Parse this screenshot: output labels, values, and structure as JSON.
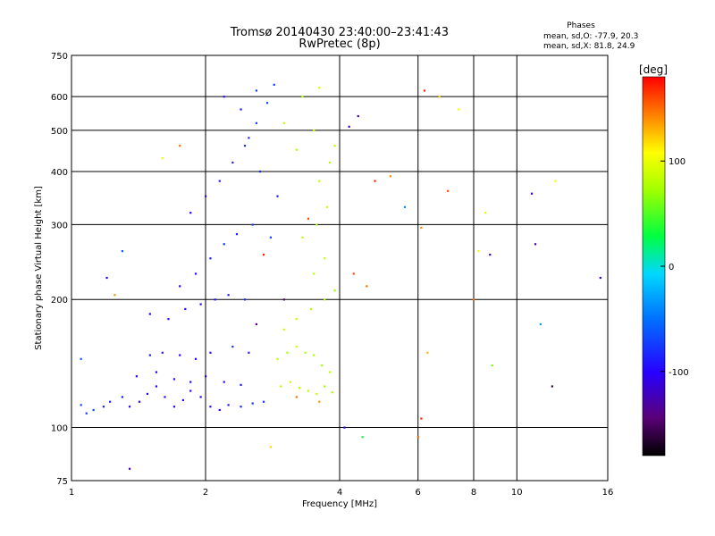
{
  "chart_data": {
    "type": "scatter",
    "title": "Tromsø 20140430 23:40:00–23:41:43",
    "subtitle": "RwPretec (8p)",
    "stats": {
      "heading": "Phases",
      "line1": "mean, sd,O: -77.9, 20.3",
      "line2": "mean, sd,X:  81.8, 24.9"
    },
    "xlabel": "Frequency [MHz]",
    "ylabel": "Stationary phase Virtual Height [km]",
    "x_scale": "log",
    "y_scale": "log",
    "xlim": [
      1,
      16
    ],
    "ylim": [
      75,
      750
    ],
    "x_ticks": [
      {
        "value": 1,
        "label": "1"
      },
      {
        "value": 2,
        "label": "2"
      },
      {
        "value": 4,
        "label": "4"
      },
      {
        "value": 6,
        "label": "6"
      },
      {
        "value": 8,
        "label": "8"
      },
      {
        "value": 10,
        "label": "10"
      },
      {
        "value": 16,
        "label": "16"
      }
    ],
    "y_ticks": [
      {
        "value": 75,
        "label": "75"
      },
      {
        "value": 100,
        "label": "100"
      },
      {
        "value": 200,
        "label": "200"
      },
      {
        "value": 300,
        "label": "300"
      },
      {
        "value": 400,
        "label": "400"
      },
      {
        "value": 500,
        "label": "500"
      },
      {
        "value": 600,
        "label": "600"
      },
      {
        "value": 750,
        "label": "750"
      }
    ],
    "grid": true,
    "colorbar": {
      "label": "[deg]",
      "range": [
        -180,
        180
      ],
      "ticks": [
        {
          "value": 100,
          "label": "100"
        },
        {
          "value": 0,
          "label": "0"
        },
        {
          "value": -100,
          "label": "-100"
        }
      ]
    },
    "points": [
      [
        1.05,
        113,
        -70
      ],
      [
        1.08,
        108,
        -75
      ],
      [
        1.12,
        110,
        -70
      ],
      [
        1.18,
        112,
        -85
      ],
      [
        1.22,
        115,
        -80
      ],
      [
        1.3,
        118,
        -90
      ],
      [
        1.35,
        112,
        -95
      ],
      [
        1.42,
        115,
        -100
      ],
      [
        1.48,
        120,
        -95
      ],
      [
        1.55,
        125,
        -100
      ],
      [
        1.62,
        118,
        -105
      ],
      [
        1.7,
        112,
        -100
      ],
      [
        1.78,
        116,
        -95
      ],
      [
        1.85,
        122,
        -105
      ],
      [
        1.95,
        118,
        -100
      ],
      [
        2.05,
        112,
        -95
      ],
      [
        2.15,
        110,
        -100
      ],
      [
        2.25,
        113,
        -90
      ],
      [
        2.4,
        112,
        -85
      ],
      [
        2.55,
        114,
        -80
      ],
      [
        2.7,
        115,
        -75
      ],
      [
        1.4,
        132,
        -100
      ],
      [
        1.55,
        135,
        -105
      ],
      [
        1.7,
        130,
        -95
      ],
      [
        1.85,
        128,
        -110
      ],
      [
        2.0,
        132,
        -100
      ],
      [
        2.2,
        128,
        -95
      ],
      [
        2.4,
        126,
        -90
      ],
      [
        1.5,
        148,
        -85
      ],
      [
        1.6,
        150,
        -90
      ],
      [
        1.75,
        148,
        -95
      ],
      [
        1.9,
        145,
        -100
      ],
      [
        2.05,
        150,
        -95
      ],
      [
        2.3,
        155,
        -80
      ],
      [
        2.5,
        150,
        -90
      ],
      [
        1.5,
        185,
        -100
      ],
      [
        1.65,
        180,
        -95
      ],
      [
        1.8,
        190,
        -105
      ],
      [
        1.95,
        195,
        -100
      ],
      [
        2.1,
        200,
        -95
      ],
      [
        2.25,
        205,
        -90
      ],
      [
        2.45,
        200,
        -85
      ],
      [
        1.75,
        215,
        -100
      ],
      [
        1.9,
        230,
        -95
      ],
      [
        2.05,
        250,
        -90
      ],
      [
        2.2,
        270,
        -80
      ],
      [
        2.35,
        285,
        -85
      ],
      [
        2.55,
        300,
        -75
      ],
      [
        2.8,
        280,
        -70
      ],
      [
        1.85,
        320,
        -100
      ],
      [
        2.0,
        350,
        -95
      ],
      [
        2.15,
        380,
        -90
      ],
      [
        2.3,
        420,
        -85
      ],
      [
        2.45,
        460,
        -80
      ],
      [
        2.6,
        520,
        -75
      ],
      [
        2.75,
        580,
        -70
      ],
      [
        2.2,
        600,
        -95
      ],
      [
        2.4,
        560,
        -85
      ],
      [
        2.6,
        620,
        -75
      ],
      [
        2.85,
        640,
        -70
      ],
      [
        2.5,
        480,
        -80
      ],
      [
        2.65,
        400,
        -85
      ],
      [
        2.9,
        350,
        -90
      ],
      [
        2.95,
        125,
        80
      ],
      [
        3.1,
        128,
        85
      ],
      [
        3.25,
        124,
        75
      ],
      [
        3.4,
        122,
        80
      ],
      [
        3.55,
        120,
        85
      ],
      [
        3.7,
        125,
        70
      ],
      [
        3.85,
        121,
        75
      ],
      [
        2.9,
        145,
        80
      ],
      [
        3.05,
        150,
        75
      ],
      [
        3.2,
        155,
        85
      ],
      [
        3.35,
        150,
        80
      ],
      [
        3.5,
        148,
        75
      ],
      [
        3.65,
        140,
        70
      ],
      [
        3.8,
        135,
        80
      ],
      [
        3.0,
        170,
        90
      ],
      [
        3.2,
        180,
        85
      ],
      [
        3.45,
        190,
        80
      ],
      [
        3.7,
        200,
        75
      ],
      [
        3.9,
        210,
        70
      ],
      [
        3.5,
        230,
        80
      ],
      [
        3.7,
        250,
        85
      ],
      [
        3.3,
        280,
        80
      ],
      [
        3.55,
        300,
        75
      ],
      [
        3.75,
        330,
        85
      ],
      [
        3.6,
        380,
        80
      ],
      [
        3.8,
        420,
        75
      ],
      [
        3.5,
        500,
        85
      ],
      [
        3.3,
        600,
        80
      ],
      [
        3.6,
        630,
        90
      ],
      [
        3.9,
        460,
        80
      ],
      [
        3.2,
        450,
        75
      ],
      [
        3.0,
        520,
        85
      ],
      [
        2.8,
        90,
        120
      ],
      [
        3.2,
        118,
        150
      ],
      [
        3.6,
        115,
        140
      ],
      [
        2.7,
        255,
        170
      ],
      [
        3.4,
        310,
        160
      ],
      [
        3.0,
        200,
        -150
      ],
      [
        2.6,
        175,
        -140
      ],
      [
        4.3,
        230,
        160
      ],
      [
        4.6,
        215,
        150
      ],
      [
        4.8,
        380,
        170
      ],
      [
        4.2,
        510,
        -120
      ],
      [
        4.4,
        540,
        -130
      ],
      [
        4.1,
        100,
        -110
      ],
      [
        4.5,
        95,
        30
      ],
      [
        1.3,
        260,
        -60
      ],
      [
        1.2,
        225,
        -110
      ],
      [
        1.25,
        205,
        140
      ],
      [
        1.6,
        430,
        100
      ],
      [
        1.75,
        460,
        150
      ],
      [
        1.35,
        80,
        -120
      ],
      [
        1.05,
        145,
        -60
      ],
      [
        6.2,
        620,
        170
      ],
      [
        6.1,
        295,
        140
      ],
      [
        6.7,
        600,
        120
      ],
      [
        6.3,
        150,
        130
      ],
      [
        7.0,
        360,
        160
      ],
      [
        7.4,
        560,
        110
      ],
      [
        8.2,
        260,
        100
      ],
      [
        8.5,
        320,
        95
      ],
      [
        8.7,
        255,
        -120
      ],
      [
        8.0,
        200,
        150
      ],
      [
        8.8,
        140,
        60
      ],
      [
        10.8,
        355,
        -120
      ],
      [
        11.0,
        270,
        -130
      ],
      [
        11.3,
        175,
        -30
      ],
      [
        12.0,
        125,
        -160
      ],
      [
        12.2,
        380,
        100
      ],
      [
        15.4,
        225,
        -120
      ],
      [
        5.6,
        330,
        -40
      ],
      [
        5.2,
        390,
        140
      ],
      [
        6.1,
        105,
        170
      ],
      [
        6.0,
        95,
        150
      ]
    ]
  }
}
